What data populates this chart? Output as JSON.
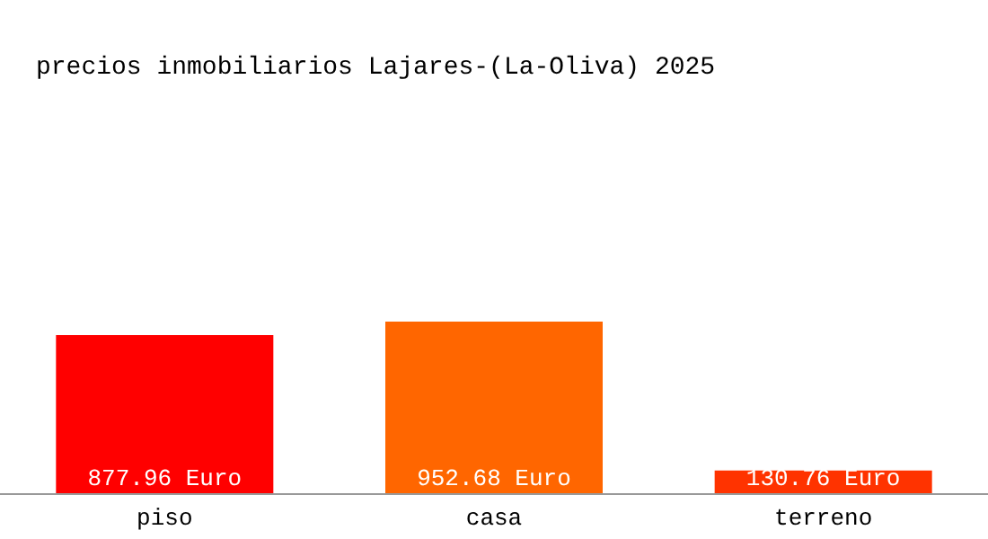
{
  "chart_data": {
    "type": "bar",
    "title": "precios inmobiliarios Lajares-(La-Oliva) 2025",
    "categories": [
      "piso",
      "casa",
      "terreno"
    ],
    "values": [
      877.96,
      952.68,
      130.76
    ],
    "colors": [
      "#ff0000",
      "#ff6600",
      "#ff3300"
    ],
    "value_labels": [
      "877.96 Euro",
      "952.68 Euro",
      "130.76 Euro"
    ],
    "grid": false,
    "legend": false
  }
}
